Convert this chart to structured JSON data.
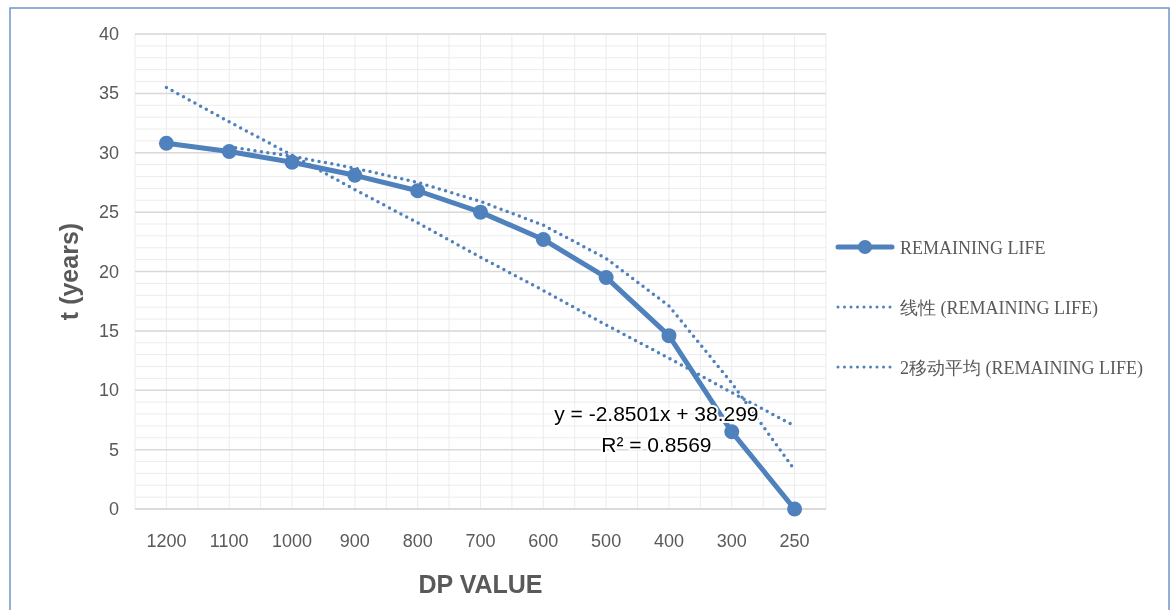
{
  "chart_data": {
    "type": "line",
    "xlabel": "DP VALUE",
    "ylabel": "t (years)",
    "categories": [
      "1200",
      "1100",
      "1000",
      "900",
      "800",
      "700",
      "600",
      "500",
      "400",
      "300",
      "250"
    ],
    "ylim": [
      0,
      40
    ],
    "yticks": [
      0,
      5,
      10,
      15,
      20,
      25,
      30,
      35,
      40
    ],
    "grid": true,
    "legend": "right",
    "annotations": [
      "y = -2.8501x + 38.299",
      "R² = 0.8569"
    ],
    "series": [
      {
        "name": "REMAINING LIFE",
        "color": "#4f81bd",
        "marker": "circle",
        "line_style": "solid",
        "values": [
          30.8,
          30.1,
          29.2,
          28.1,
          26.8,
          25.0,
          22.7,
          19.5,
          14.6,
          6.5,
          0
        ]
      },
      {
        "name": "线性 (REMAINING LIFE)",
        "color": "#4f81bd",
        "marker": "none",
        "line_style": "dotted",
        "values": [
          35.5,
          32.6,
          29.8,
          26.9,
          24.1,
          21.2,
          18.4,
          15.5,
          12.7,
          9.8,
          7.0
        ]
      },
      {
        "name": "2移动平均 (REMAINING LIFE)",
        "color": "#4f81bd",
        "marker": "none",
        "line_style": "dotted",
        "values": [
          null,
          30.5,
          29.7,
          28.7,
          27.5,
          25.9,
          23.9,
          21.1,
          17.1,
          10.6,
          3.3
        ]
      }
    ]
  }
}
